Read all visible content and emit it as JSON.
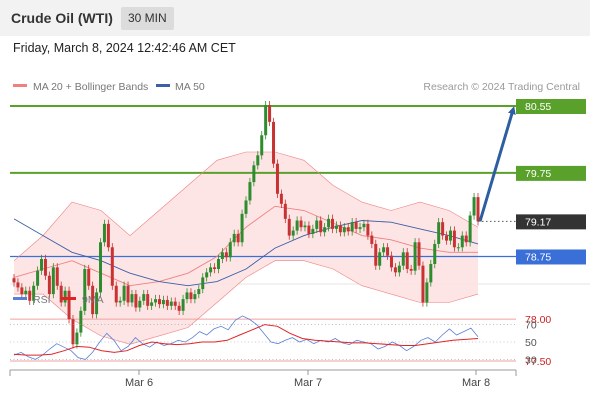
{
  "header": {
    "title": "Crude Oil (WTI)",
    "timeframe": "30 MIN"
  },
  "datetime": "Friday, March 8, 2024 12:42:46 AM CET",
  "credit": "Research © 2024 Trading Central",
  "colors": {
    "bollinger_line": "#f08080",
    "bollinger_fill": "#fde0e0",
    "ma50": "#3c5fa8",
    "resistance": "#5aa12b",
    "support_line": "#f2a0a0",
    "support_text": "#cc2222",
    "pivot": "#3a6fd8",
    "current": "#333333",
    "arrow": "#2c5ea0",
    "candle_up": "#2e8b2e",
    "candle_down": "#c83232",
    "rsi": "#5b7fd6",
    "rsi_ma": "#e02424"
  },
  "chart_data": [
    {
      "type": "candlestick",
      "legend": [
        {
          "name": "MA 20 + Bollinger Bands",
          "color": "#f08080"
        },
        {
          "name": "MA 50",
          "color": "#3c5fa8"
        }
      ],
      "ylim": [
        77.4,
        80.6
      ],
      "x_labels": [
        "Mar 6",
        "Mar 7",
        "Mar 8"
      ],
      "levels": [
        {
          "label": "80.55",
          "value": 80.55,
          "kind": "resistance"
        },
        {
          "label": "79.75",
          "value": 79.75,
          "kind": "resistance"
        },
        {
          "label": "79.17",
          "value": 79.17,
          "kind": "current"
        },
        {
          "label": "78.75",
          "value": 78.75,
          "kind": "pivot"
        },
        {
          "label": "78.00",
          "value": 78.0,
          "kind": "support"
        },
        {
          "label": "77.50",
          "value": 77.5,
          "kind": "support"
        }
      ],
      "closes": [
        78.44,
        78.38,
        78.3,
        78.34,
        78.22,
        78.4,
        78.58,
        78.72,
        78.52,
        78.3,
        78.62,
        78.4,
        78.2,
        78.34,
        78.0,
        77.7,
        77.84,
        78.1,
        78.6,
        78.4,
        78.06,
        78.32,
        78.92,
        79.14,
        78.86,
        78.4,
        78.2,
        78.22,
        78.4,
        78.2,
        78.3,
        78.14,
        78.22,
        78.3,
        78.16,
        78.2,
        78.24,
        78.18,
        78.23,
        78.16,
        78.21,
        78.16,
        78.1,
        78.24,
        78.32,
        78.24,
        78.3,
        78.36,
        78.5,
        78.56,
        78.62,
        78.6,
        78.72,
        78.8,
        78.74,
        78.92,
        79.02,
        78.92,
        79.26,
        79.42,
        79.64,
        79.84,
        79.96,
        80.2,
        80.56,
        80.36,
        79.86,
        79.5,
        79.38,
        79.2,
        79.0,
        79.06,
        79.18,
        79.1,
        79.12,
        79.02,
        79.08,
        79.18,
        79.04,
        79.1,
        79.2,
        79.08,
        79.12,
        79.04,
        79.1,
        79.05,
        79.16,
        79.08,
        79.1,
        79.14,
        79.0,
        78.9,
        78.64,
        78.8,
        78.86,
        78.76,
        78.62,
        78.56,
        78.64,
        78.8,
        78.6,
        78.58,
        78.92,
        78.64,
        78.2,
        78.44,
        78.66,
        78.9,
        79.16,
        79.0,
        78.94,
        79.06,
        78.86,
        78.86,
        79.0,
        78.92,
        79.24,
        79.46,
        79.17
      ],
      "bollinger_upper": [
        78.7,
        79.0,
        79.4,
        79.3,
        79.0,
        79.3,
        79.6,
        79.9,
        80.0,
        80.0,
        79.9,
        79.6,
        79.4,
        79.3,
        79.4,
        79.3,
        79.1
      ],
      "bollinger_lower": [
        78.3,
        78.3,
        78.0,
        77.8,
        77.7,
        77.8,
        77.9,
        78.2,
        78.5,
        78.7,
        78.7,
        78.6,
        78.4,
        78.3,
        78.2,
        78.2,
        78.3
      ],
      "ma20": [
        78.5,
        78.6,
        78.7,
        78.55,
        78.4,
        78.45,
        78.55,
        78.75,
        79.1,
        79.35,
        79.3,
        79.15,
        79.0,
        78.95,
        78.85,
        78.8,
        78.8
      ],
      "ma50": [
        79.2,
        79.0,
        78.8,
        78.7,
        78.55,
        78.45,
        78.4,
        78.45,
        78.6,
        78.85,
        79.0,
        79.1,
        79.18,
        79.16,
        79.08,
        79.0,
        78.9
      ],
      "annotation": {
        "type": "arrow",
        "from": 79.17,
        "to": 80.55
      }
    },
    {
      "type": "line",
      "legend": [
        {
          "name": "RSI",
          "color": "#5b7fd6"
        },
        {
          "name": "9MA",
          "color": "#e02424"
        }
      ],
      "ylim": [
        20,
        80
      ],
      "yticks": [
        {
          "label": "70",
          "value": 70
        },
        {
          "label": "50",
          "value": 50
        },
        {
          "label": "30",
          "value": 30
        }
      ],
      "rsi": [
        35,
        38,
        33,
        30,
        35,
        42,
        48,
        44,
        40,
        32,
        30,
        38,
        50,
        60,
        52,
        40,
        45,
        55,
        48,
        44,
        50,
        46,
        48,
        52,
        50,
        55,
        62,
        58,
        65,
        68,
        64,
        75,
        80,
        76,
        70,
        60,
        50,
        48,
        52,
        55,
        50,
        53,
        48,
        52,
        50,
        54,
        49,
        47,
        52,
        50,
        48,
        42,
        45,
        50,
        46,
        40,
        45,
        52,
        55,
        50,
        58,
        65,
        58,
        62,
        66,
        56
      ],
      "rsi_ma": [
        36,
        35,
        35,
        36,
        40,
        45,
        44,
        40,
        38,
        40,
        46,
        50,
        48,
        47,
        48,
        50,
        50,
        52,
        58,
        64,
        70,
        68,
        60,
        54,
        52,
        51,
        50,
        49,
        49,
        48,
        47,
        46,
        46,
        48,
        50,
        52,
        53,
        54
      ]
    }
  ]
}
